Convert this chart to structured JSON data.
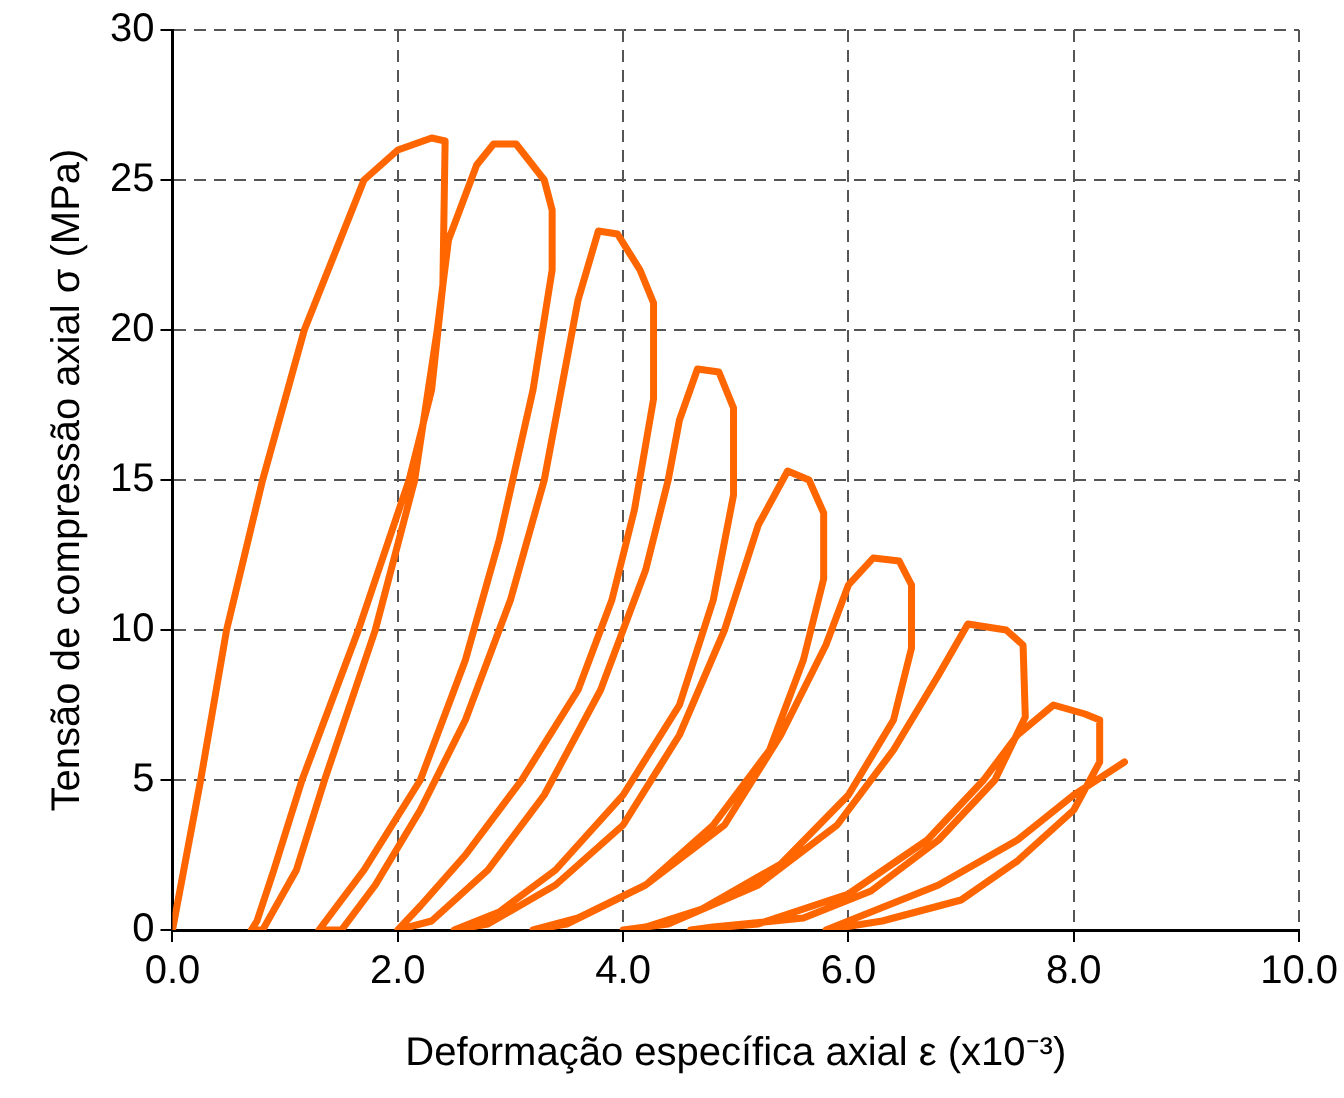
{
  "chart_data": {
    "type": "line",
    "xlabel": "Deformação específica axial ε (x10⁻³)",
    "ylabel": "Tensão de compressão axial σ (MPa)",
    "xlim": [
      0,
      10
    ],
    "ylim": [
      0,
      30
    ],
    "xticks": [
      {
        "value": 0,
        "label": "0.0"
      },
      {
        "value": 2,
        "label": "2.0"
      },
      {
        "value": 4,
        "label": "4.0"
      },
      {
        "value": 6,
        "label": "6.0"
      },
      {
        "value": 8,
        "label": "8.0"
      },
      {
        "value": 10,
        "label": "10.0"
      }
    ],
    "yticks": [
      0,
      5,
      10,
      15,
      20,
      25,
      30
    ],
    "grid": true,
    "legend": false,
    "marker": "none",
    "line_style": "solid",
    "series": [
      {
        "color": "#ff6600",
        "x": [
          0,
          0.1,
          0.25,
          0.48,
          0.8,
          1.17,
          1.7,
          2.0,
          2.3,
          2.42,
          2.4,
          2.3,
          2.1,
          1.65,
          1.15,
          0.9,
          0.75,
          0.7,
          0.8,
          1.1,
          1.35,
          1.8,
          2.15,
          2.35,
          2.45,
          2.7,
          2.85,
          3.05,
          3.3,
          3.37,
          3.37,
          3.2,
          2.9,
          2.6,
          2.2,
          1.7,
          1.4,
          1.3,
          1.5,
          1.8,
          2.2,
          2.6,
          3.0,
          3.3,
          3.5,
          3.6,
          3.78,
          3.95,
          4.15,
          4.27,
          4.27,
          4.1,
          3.9,
          3.6,
          3.1,
          2.6,
          2.2,
          2.0,
          2.3,
          2.8,
          3.3,
          3.8,
          4.2,
          4.4,
          4.5,
          4.66,
          4.85,
          4.98,
          4.98,
          4.8,
          4.5,
          4.0,
          3.4,
          2.9,
          2.5,
          2.8,
          3.4,
          4.0,
          4.5,
          4.9,
          5.2,
          5.46,
          5.65,
          5.78,
          5.78,
          5.6,
          5.3,
          4.8,
          4.2,
          3.6,
          3.2,
          3.5,
          4.2,
          4.9,
          5.4,
          5.8,
          6.0,
          6.22,
          6.45,
          6.56,
          6.56,
          6.4,
          6.0,
          5.4,
          4.7,
          4.2,
          4.0,
          4.4,
          5.2,
          5.9,
          6.4,
          6.8,
          7.06,
          7.4,
          7.55,
          7.57,
          7.3,
          6.8,
          6.2,
          5.6,
          4.8,
          4.6,
          5.2,
          6.0,
          6.7,
          7.2,
          7.5,
          7.82,
          8.1,
          8.23,
          8.23,
          8.0,
          7.5,
          7.0,
          6.3,
          5.8,
          6.0,
          6.8,
          7.5,
          8.0,
          8.45
        ],
        "values": [
          0,
          2,
          5,
          10,
          15,
          20,
          25,
          26,
          26.4,
          26.3,
          21.5,
          18,
          15,
          10,
          5,
          2,
          0.3,
          0,
          0,
          2,
          5,
          10,
          15,
          20,
          23,
          25.5,
          26.2,
          26.2,
          25,
          24,
          22,
          18,
          13,
          9,
          5,
          2,
          0.5,
          0,
          0,
          1.5,
          4,
          7,
          11,
          15,
          19,
          21,
          23.3,
          23.2,
          22,
          20.9,
          17.7,
          14,
          11,
          8,
          5,
          2.5,
          0.8,
          0,
          0.3,
          2,
          4.5,
          8,
          12,
          15,
          17,
          18.7,
          18.6,
          17.4,
          14.5,
          11,
          7.5,
          4.5,
          2,
          0.6,
          0,
          0.2,
          1.5,
          3.5,
          6.5,
          10,
          13.5,
          15.3,
          15,
          13.9,
          11.7,
          9,
          6,
          3.5,
          1.5,
          0.4,
          0,
          0.2,
          1.5,
          3.5,
          6.5,
          9.5,
          11.5,
          12.4,
          12.3,
          11.5,
          9.4,
          7,
          4.5,
          2.2,
          0.7,
          0.1,
          0,
          0.2,
          1.5,
          3.5,
          6,
          8.5,
          10.2,
          10,
          9.5,
          7.1,
          5,
          3,
          1.3,
          0.4,
          0.1,
          0,
          0.2,
          1.2,
          3,
          5,
          6.5,
          7.5,
          7.2,
          7.0,
          5.6,
          4,
          2.3,
          1,
          0.3,
          0,
          0.3,
          1.5,
          3,
          4.5,
          5.6
        ]
      }
    ]
  }
}
